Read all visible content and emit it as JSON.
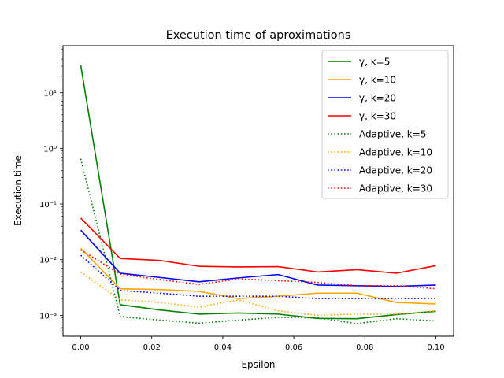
{
  "chart_data": {
    "type": "line",
    "title": "Execution time of aproximations",
    "xlabel": "Epsilon",
    "ylabel": "Execution time",
    "xlim": [
      -0.005,
      0.105
    ],
    "ylim": [
      0.00042,
      70
    ],
    "yscale": "log",
    "grid": false,
    "legend_position": "top-right",
    "x_ticks": [
      0.0,
      0.02,
      0.04,
      0.06,
      0.08,
      0.1
    ],
    "x_tick_labels": [
      "0.00",
      "0.02",
      "0.04",
      "0.06",
      "0.08",
      "0.10"
    ],
    "y_ticks": [
      0.001,
      0.01,
      0.1,
      1,
      10
    ],
    "y_tick_labels": [
      "10⁻³",
      "10⁻²",
      "10⁻¹",
      "10⁰",
      "10¹"
    ],
    "x": [
      0.0,
      0.0111,
      0.0222,
      0.0333,
      0.0444,
      0.0556,
      0.0667,
      0.0778,
      0.0889,
      0.1
    ],
    "series": [
      {
        "name": "γ, k=5",
        "color": "#008000",
        "style": "solid",
        "values": [
          31,
          0.00155,
          0.00125,
          0.00105,
          0.0011,
          0.00105,
          0.00088,
          0.00087,
          0.00103,
          0.00118
        ]
      },
      {
        "name": "γ, k=10",
        "color": "#ffa500",
        "style": "solid",
        "values": [
          0.016,
          0.003,
          0.0029,
          0.0027,
          0.002,
          0.0022,
          0.0025,
          0.0025,
          0.0017,
          0.0016
        ]
      },
      {
        "name": "γ, k=20",
        "color": "#0000ff",
        "style": "solid",
        "values": [
          0.034,
          0.0057,
          0.0048,
          0.004,
          0.0047,
          0.0054,
          0.0035,
          0.0034,
          0.0033,
          0.0035
        ]
      },
      {
        "name": "γ, k=30",
        "color": "#ff0000",
        "style": "solid",
        "values": [
          0.056,
          0.0105,
          0.0097,
          0.0076,
          0.0074,
          0.0075,
          0.006,
          0.0066,
          0.0057,
          0.0078
        ]
      },
      {
        "name": "Adaptive, k=5",
        "color": "#008000",
        "style": "dotted",
        "values": [
          0.65,
          0.00095,
          0.00082,
          0.00072,
          0.00082,
          0.00092,
          0.0009,
          0.00071,
          0.00087,
          0.00079
        ]
      },
      {
        "name": "Adaptive, k=10",
        "color": "#ffa500",
        "style": "dotted",
        "values": [
          0.006,
          0.0019,
          0.0017,
          0.0014,
          0.0019,
          0.0012,
          0.001,
          0.00105,
          0.00105,
          0.0012
        ]
      },
      {
        "name": "Adaptive, k=20",
        "color": "#0000ff",
        "style": "dotted",
        "values": [
          0.012,
          0.0028,
          0.0025,
          0.0022,
          0.0022,
          0.0022,
          0.002,
          0.002,
          0.002,
          0.002
        ]
      },
      {
        "name": "Adaptive, k=30",
        "color": "#ff0000",
        "style": "dotted",
        "values": [
          0.015,
          0.0055,
          0.0044,
          0.0036,
          0.0045,
          0.0042,
          0.0039,
          0.0034,
          0.0034,
          0.003
        ]
      }
    ]
  }
}
